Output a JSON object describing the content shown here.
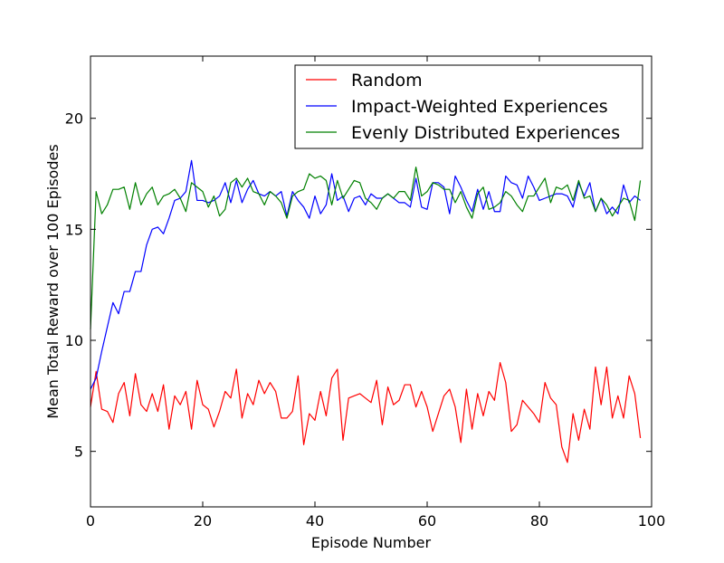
{
  "chart_data": {
    "type": "line",
    "xlabel": "Episode Number",
    "ylabel": "Mean Total Reward over 100 Episodes",
    "xlim": [
      0,
      100
    ],
    "ylim": [
      2.5,
      22.8
    ],
    "xticks": [
      0,
      20,
      40,
      60,
      80,
      100
    ],
    "yticks": [
      5,
      10,
      15,
      20
    ],
    "grid": false,
    "legend_position": "top-right",
    "series": [
      {
        "name": "Random",
        "color": "#ff0000",
        "values": [
          7.0,
          8.6,
          6.9,
          6.8,
          6.3,
          7.6,
          8.1,
          6.6,
          8.5,
          7.1,
          6.8,
          7.6,
          6.8,
          8.0,
          6.0,
          7.5,
          7.1,
          7.7,
          6.0,
          8.2,
          7.1,
          6.9,
          6.1,
          6.8,
          7.7,
          7.4,
          8.7,
          6.5,
          7.6,
          7.1,
          8.2,
          7.6,
          8.1,
          7.7,
          6.5,
          6.5,
          6.8,
          8.4,
          5.3,
          6.7,
          6.4,
          7.7,
          6.6,
          8.3,
          8.7,
          5.5,
          7.4,
          7.5,
          7.6,
          7.4,
          7.2,
          8.2,
          6.2,
          7.9,
          7.1,
          7.3,
          8.0,
          8.0,
          7.0,
          7.7,
          7.0,
          5.9,
          6.7,
          7.5,
          7.8,
          7.0,
          5.4,
          7.8,
          6.0,
          7.6,
          6.6,
          7.7,
          7.3,
          9.0,
          8.1,
          5.9,
          6.2,
          7.3,
          7.0,
          6.7,
          6.3,
          8.1,
          7.4,
          7.1,
          5.2,
          4.5,
          6.7,
          5.5,
          6.9,
          6.0,
          8.8,
          7.1,
          8.8,
          6.5,
          7.5,
          6.5,
          8.4,
          7.6,
          5.6
        ]
      },
      {
        "name": "Impact-Weighted Experiences",
        "color": "#0000ff",
        "values": [
          7.8,
          8.3,
          9.5,
          10.6,
          11.7,
          11.2,
          12.2,
          12.2,
          13.1,
          13.1,
          14.3,
          15.0,
          15.1,
          14.8,
          15.5,
          16.3,
          16.4,
          16.7,
          18.1,
          16.3,
          16.3,
          16.2,
          16.3,
          16.5,
          17.1,
          16.2,
          17.2,
          16.2,
          16.8,
          17.2,
          16.6,
          16.5,
          16.7,
          16.5,
          16.7,
          15.6,
          16.7,
          16.3,
          16.0,
          15.5,
          16.5,
          15.7,
          16.1,
          17.5,
          16.3,
          16.5,
          15.8,
          16.4,
          16.5,
          16.1,
          16.6,
          16.4,
          16.4,
          16.6,
          16.4,
          16.2,
          16.2,
          16.0,
          17.3,
          16.0,
          15.9,
          17.1,
          17.1,
          16.9,
          15.7,
          17.4,
          16.9,
          16.3,
          15.8,
          16.8,
          15.9,
          16.7,
          15.8,
          15.8,
          17.4,
          17.1,
          17.0,
          16.4,
          17.4,
          16.9,
          16.3,
          16.4,
          16.5,
          16.6,
          16.6,
          16.5,
          16.0,
          17.1,
          16.5,
          17.1,
          15.8,
          16.4,
          15.7,
          16.0,
          15.7,
          17.0,
          16.2,
          16.5,
          16.3
        ]
      },
      {
        "name": "Evenly Distributed Experiences",
        "color": "#008000",
        "values": [
          10.5,
          16.7,
          15.7,
          16.1,
          16.8,
          16.8,
          16.9,
          15.9,
          17.1,
          16.1,
          16.6,
          16.9,
          16.1,
          16.5,
          16.6,
          16.8,
          16.4,
          15.8,
          17.1,
          16.9,
          16.7,
          16.0,
          16.5,
          15.6,
          15.9,
          17.1,
          17.3,
          16.9,
          17.3,
          16.7,
          16.6,
          16.1,
          16.7,
          16.5,
          16.2,
          15.5,
          16.5,
          16.7,
          16.8,
          17.5,
          17.3,
          17.4,
          17.2,
          16.1,
          17.2,
          16.4,
          16.8,
          17.2,
          17.1,
          16.4,
          16.2,
          15.9,
          16.4,
          16.6,
          16.4,
          16.7,
          16.7,
          16.3,
          17.8,
          16.5,
          16.7,
          17.1,
          17.0,
          16.8,
          16.8,
          16.2,
          16.7,
          16.0,
          15.5,
          16.6,
          16.9,
          15.9,
          16.0,
          16.2,
          16.7,
          16.5,
          16.1,
          15.8,
          16.5,
          16.5,
          16.9,
          17.3,
          16.2,
          16.9,
          16.8,
          17.0,
          16.3,
          17.2,
          16.4,
          16.5,
          15.8,
          16.4,
          16.1,
          15.6,
          16.0,
          16.4,
          16.3,
          15.4,
          17.2
        ]
      }
    ]
  }
}
